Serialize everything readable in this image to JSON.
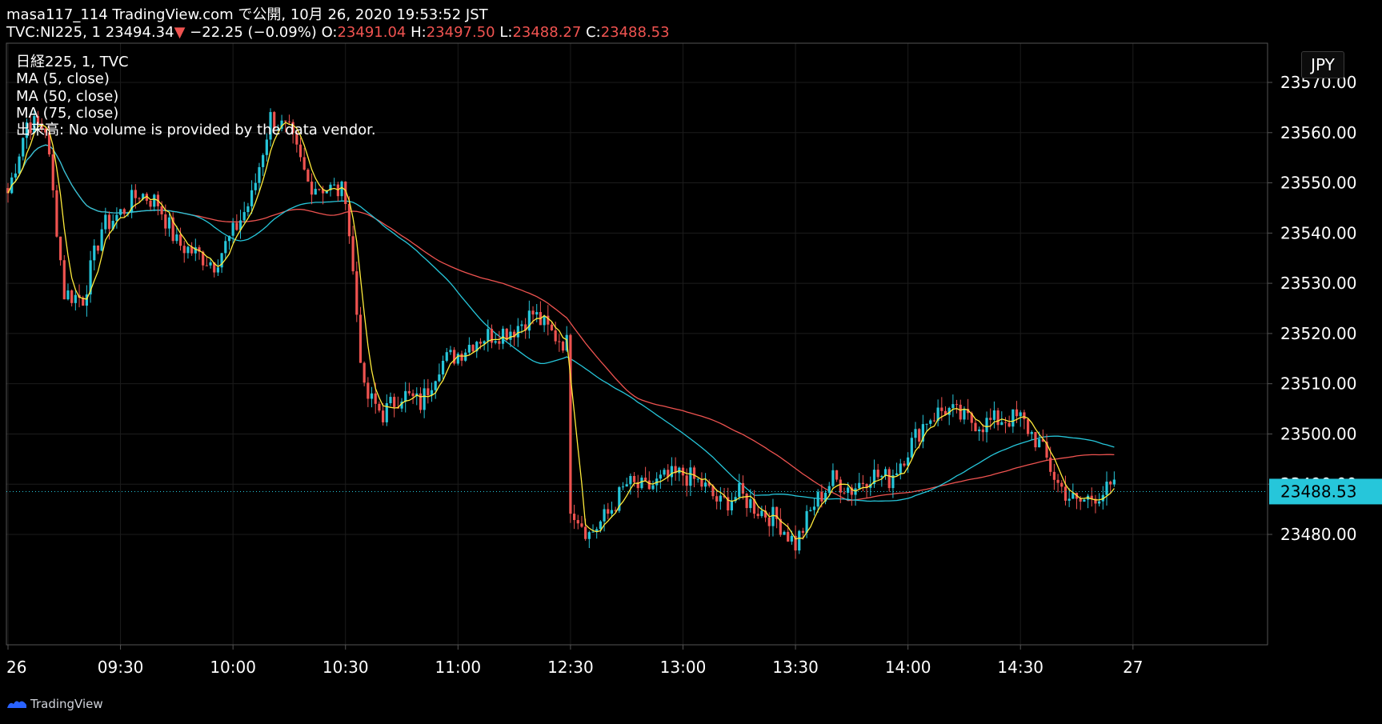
{
  "header": {
    "line1": "masa117_114 TradingView.com で公開, 10月 26, 2020 19:53:52 JST",
    "symbol": "TVC:NI225, 1",
    "last": "23494.34",
    "arrow": "▼",
    "change": "−22.25 (−0.09%)",
    "o_label": "O:",
    "o_value": "23491.04",
    "h_label": "H:",
    "h_value": "23497.50",
    "l_label": "L:",
    "l_value": "23488.27",
    "c_label": "C:",
    "c_value": "23488.53"
  },
  "legend": {
    "title": "日経225, 1, TVC",
    "ma5": "MA (5, close)",
    "ma50": "MA (50, close)",
    "ma75": "MA (75, close)",
    "volume": "出来高: No volume is provided by the data vendor."
  },
  "currency": "JPY",
  "brand": "TradingView",
  "colors": {
    "background": "#000000",
    "up_candle": "#26c6da",
    "down_candle": "#ef5350",
    "ma5": "#ffeb3b",
    "ma50": "#26c6da",
    "ma75": "#ef5350",
    "last_price": "#26c6da",
    "grid": "#1c1c1c"
  },
  "chart_data": {
    "type": "candlestick",
    "title": "日経225, 1, TVC",
    "y_ticks": [
      23480,
      23490,
      23500,
      23510,
      23520,
      23530,
      23540,
      23550,
      23560,
      23570
    ],
    "y_tick_labels": [
      "23480.00",
      "23490.00",
      "23500.00",
      "23510.00",
      "23520.00",
      "23530.00",
      "23540.00",
      "23550.00",
      "23560.00",
      "23570.00"
    ],
    "ylim": [
      23474,
      23576
    ],
    "x_tick_labels": [
      "26",
      "09:30",
      "10:00",
      "10:30",
      "11:00",
      "12:30",
      "13:00",
      "13:30",
      "14:00",
      "14:30",
      "27"
    ],
    "last_price_label": "23488.53",
    "last_price": 23488.53,
    "series": [
      {
        "name": "日経225",
        "anchors": [
          [
            "09:00",
            23548
          ],
          [
            "09:05",
            23562
          ],
          [
            "09:10",
            23561
          ],
          [
            "09:15",
            23528
          ],
          [
            "09:20",
            23527
          ],
          [
            "09:25",
            23541
          ],
          [
            "09:30",
            23544
          ],
          [
            "09:35",
            23548
          ],
          [
            "09:40",
            23546
          ],
          [
            "09:45",
            23538
          ],
          [
            "09:50",
            23536
          ],
          [
            "09:55",
            23534
          ],
          [
            "10:00",
            23540
          ],
          [
            "10:05",
            23547
          ],
          [
            "10:10",
            23563
          ],
          [
            "10:15",
            23560
          ],
          [
            "10:20",
            23550
          ],
          [
            "10:25",
            23549
          ],
          [
            "10:30",
            23548
          ],
          [
            "10:35",
            23508
          ],
          [
            "10:40",
            23504
          ],
          [
            "10:45",
            23508
          ],
          [
            "10:50",
            23506
          ],
          [
            "10:55",
            23514
          ],
          [
            "11:00",
            23516
          ],
          [
            "11:05",
            23519
          ],
          [
            "11:10",
            23520
          ],
          [
            "11:15",
            23521
          ],
          [
            "11:20",
            23524
          ],
          [
            "11:25",
            23520
          ],
          [
            "11:29",
            23518
          ],
          [
            "12:30",
            23486
          ],
          [
            "12:35",
            23480
          ],
          [
            "12:40",
            23484
          ],
          [
            "12:45",
            23490
          ],
          [
            "12:50",
            23489
          ],
          [
            "12:55",
            23491
          ],
          [
            "13:00",
            23492
          ],
          [
            "13:05",
            23490
          ],
          [
            "13:10",
            23486
          ],
          [
            "13:15",
            23488
          ],
          [
            "13:20",
            23485
          ],
          [
            "13:25",
            23483
          ],
          [
            "13:30",
            23478
          ],
          [
            "13:35",
            23486
          ],
          [
            "13:40",
            23491
          ],
          [
            "13:45",
            23489
          ],
          [
            "13:50",
            23492
          ],
          [
            "13:55",
            23491
          ],
          [
            "14:00",
            23497
          ],
          [
            "14:05",
            23503
          ],
          [
            "14:10",
            23505
          ],
          [
            "14:15",
            23503
          ],
          [
            "14:20",
            23502
          ],
          [
            "14:25",
            23503
          ],
          [
            "14:30",
            23503
          ],
          [
            "14:35",
            23498
          ],
          [
            "14:40",
            23490
          ],
          [
            "14:45",
            23486
          ],
          [
            "14:50",
            23488
          ],
          [
            "14:55",
            23489
          ]
        ]
      },
      {
        "name": "MA (5, close)"
      },
      {
        "name": "MA (50, close)"
      },
      {
        "name": "MA (75, close)"
      }
    ]
  }
}
